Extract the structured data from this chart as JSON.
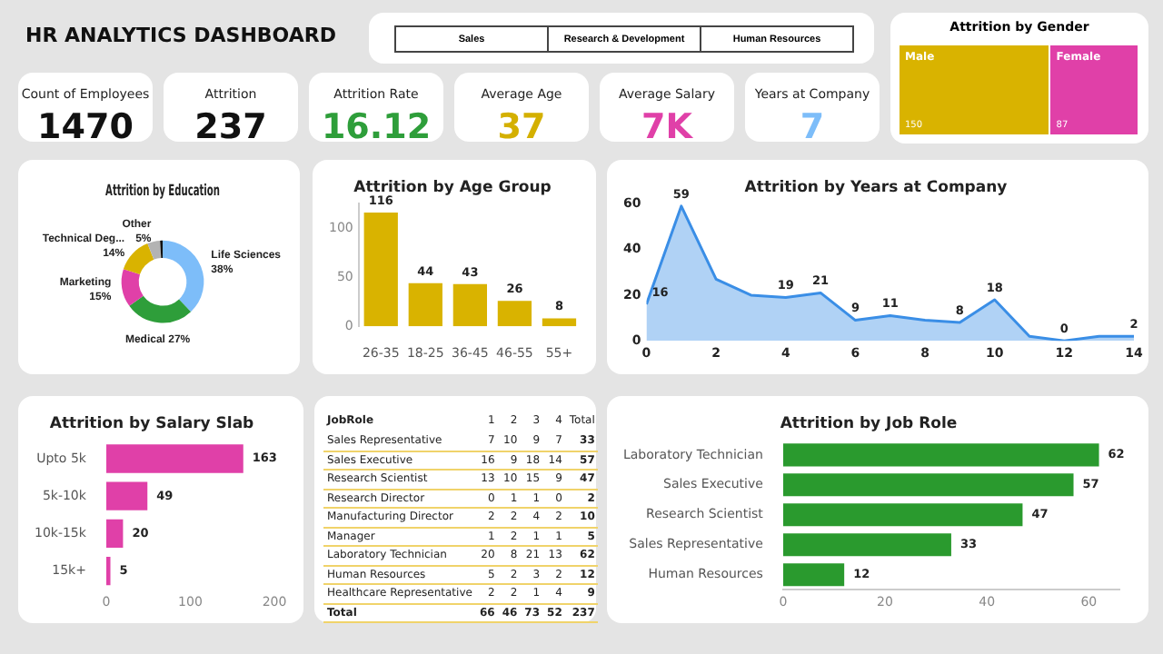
{
  "chart_data": [
    {
      "type": "other",
      "title": "HR ANALYTICS DASHBOARD",
      "annotations": [
        "Sales",
        "Research & Development",
        "Human Resources"
      ],
      "categories": [
        "Count of Employees",
        "Attrition",
        "Attrition Rate",
        "Average Age",
        "Average Salary",
        "Years at Company"
      ],
      "value_labels": [
        "1470",
        "237",
        "16.12",
        "37",
        "7K",
        "7"
      ]
    },
    {
      "type": "other",
      "title": "Attrition by Gender",
      "categories": [
        "Male",
        "Female"
      ],
      "values": [
        150,
        87
      ],
      "colors": [
        "#d9b300",
        "#e040a8"
      ],
      "data_labels": true
    },
    {
      "type": "donut",
      "title": "Attrition by Education",
      "categories": [
        "Life Sciences",
        "Medical",
        "Marketing",
        "Technical Deg...",
        "Other",
        null
      ],
      "values": [
        38,
        27,
        15,
        14,
        5,
        1
      ],
      "colors": [
        "#7dbdf9",
        "#2e9e3a",
        "#e040a8",
        "#d9b300",
        "#b3b3b3",
        "#111111"
      ],
      "value_labels": [
        "38%",
        "27%",
        "15%",
        "14%",
        "5%",
        null
      ]
    },
    {
      "type": "bar",
      "title": "Attrition by Age Group",
      "categories": [
        "26-35",
        "18-25",
        "36-45",
        "46-55",
        "55+"
      ],
      "values": [
        116,
        44,
        43,
        26,
        8
      ],
      "color": "#d9b300",
      "ylim": [
        0,
        125
      ],
      "yticks": [
        0,
        50,
        100
      ],
      "data_labels": true
    },
    {
      "type": "area",
      "title": "Attrition by Years at Company",
      "x": [
        0,
        1,
        2,
        3,
        4,
        5,
        6,
        7,
        8,
        9,
        10,
        11,
        12,
        13,
        14
      ],
      "values": [
        16,
        59,
        27,
        20,
        19,
        21,
        9,
        11,
        9,
        8,
        18,
        2,
        0,
        2,
        2
      ],
      "value_labels": [
        "16",
        "59",
        null,
        null,
        "19",
        "21",
        "9",
        "11",
        null,
        "8",
        "18",
        null,
        "0",
        null,
        "2"
      ],
      "color": "#3a8ee6",
      "xlim": [
        0,
        14
      ],
      "xticks": [
        0,
        2,
        4,
        6,
        8,
        10,
        12,
        14
      ],
      "ylim": [
        0,
        60
      ],
      "yticks": [
        0,
        20,
        40,
        60
      ]
    },
    {
      "type": "bar",
      "orientation": "horizontal",
      "title": "Attrition by Salary Slab",
      "categories": [
        "Upto 5k",
        "5k-10k",
        "10k-15k",
        "15k+"
      ],
      "values": [
        163,
        49,
        20,
        5
      ],
      "color": "#e040a8",
      "xlim": [
        0,
        200
      ],
      "xticks": [
        0,
        100,
        200
      ],
      "data_labels": true
    },
    {
      "type": "heatmap",
      "ylabel": "JobRole",
      "data_labels": true,
      "categories": [
        "1",
        "2",
        "3",
        "4",
        "Total"
      ],
      "y_categories": [
        "Sales Representative",
        "Sales Executive",
        "Research Scientist",
        "Research Director",
        "Manufacturing Director",
        "Manager",
        "Laboratory Technician",
        "Human Resources",
        "Healthcare Representative",
        "Total"
      ],
      "cells": [
        [
          7,
          10,
          9,
          7,
          33
        ],
        [
          16,
          9,
          18,
          14,
          57
        ],
        [
          13,
          10,
          15,
          9,
          47
        ],
        [
          0,
          1,
          1,
          0,
          2
        ],
        [
          2,
          2,
          4,
          2,
          10
        ],
        [
          1,
          2,
          1,
          1,
          5
        ],
        [
          20,
          8,
          21,
          13,
          62
        ],
        [
          5,
          2,
          3,
          2,
          12
        ],
        [
          2,
          2,
          1,
          4,
          9
        ],
        [
          66,
          46,
          73,
          52,
          237
        ]
      ]
    },
    {
      "type": "bar",
      "orientation": "horizontal",
      "title": "Attrition by Job Role",
      "categories": [
        "Laboratory Technician",
        "Sales Executive",
        "Research Scientist",
        "Sales Representative",
        "Human Resources"
      ],
      "values": [
        62,
        57,
        47,
        33,
        12
      ],
      "color": "#2a9a2e",
      "xlim": [
        0,
        66
      ],
      "xticks": [
        0,
        20,
        40,
        60
      ],
      "data_labels": true
    }
  ]
}
